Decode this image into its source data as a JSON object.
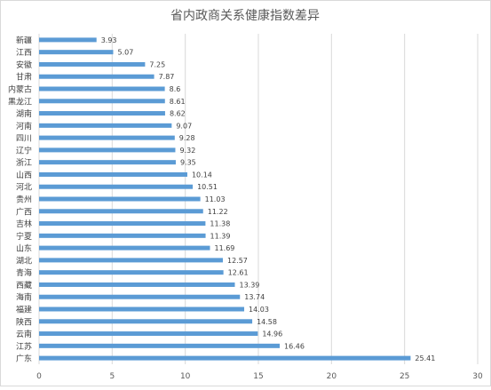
{
  "chart_data": {
    "type": "bar",
    "orientation": "horizontal",
    "title": "省内政商关系健康指数差异",
    "xlabel": "",
    "ylabel": "",
    "xlim": [
      0,
      30
    ],
    "x_ticks": [
      "0",
      "5",
      "10",
      "15",
      "20",
      "25",
      "30"
    ],
    "grid": "vertical",
    "legend": "none",
    "bar_color": "#5b9bd5",
    "categories": [
      "新疆",
      "江西",
      "安徽",
      "甘肃",
      "内蒙古",
      "黑龙江",
      "湖南",
      "河南",
      "四川",
      "辽宁",
      "浙江",
      "山西",
      "河北",
      "贵州",
      "广西",
      "吉林",
      "宁夏",
      "山东",
      "湖北",
      "青海",
      "西藏",
      "海南",
      "福建",
      "陕西",
      "云南",
      "江苏",
      "广东"
    ],
    "values": [
      3.93,
      5.07,
      7.25,
      7.87,
      8.6,
      8.61,
      8.62,
      9.07,
      9.28,
      9.32,
      9.35,
      10.14,
      10.51,
      11.03,
      11.22,
      11.38,
      11.39,
      11.69,
      12.57,
      12.61,
      13.39,
      13.74,
      14.03,
      14.58,
      14.96,
      16.46,
      25.41
    ],
    "value_labels": [
      "3.93",
      "5.07",
      "7.25",
      "7.87",
      "8.6",
      "8.61",
      "8.62",
      "9.07",
      "9.28",
      "9.32",
      "9.35",
      "10.14",
      "10.51",
      "11.03",
      "11.22",
      "11.38",
      "11.39",
      "11.69",
      "12.57",
      "12.61",
      "13.39",
      "13.74",
      "14.03",
      "14.58",
      "14.96",
      "16.46",
      "25.41"
    ]
  }
}
